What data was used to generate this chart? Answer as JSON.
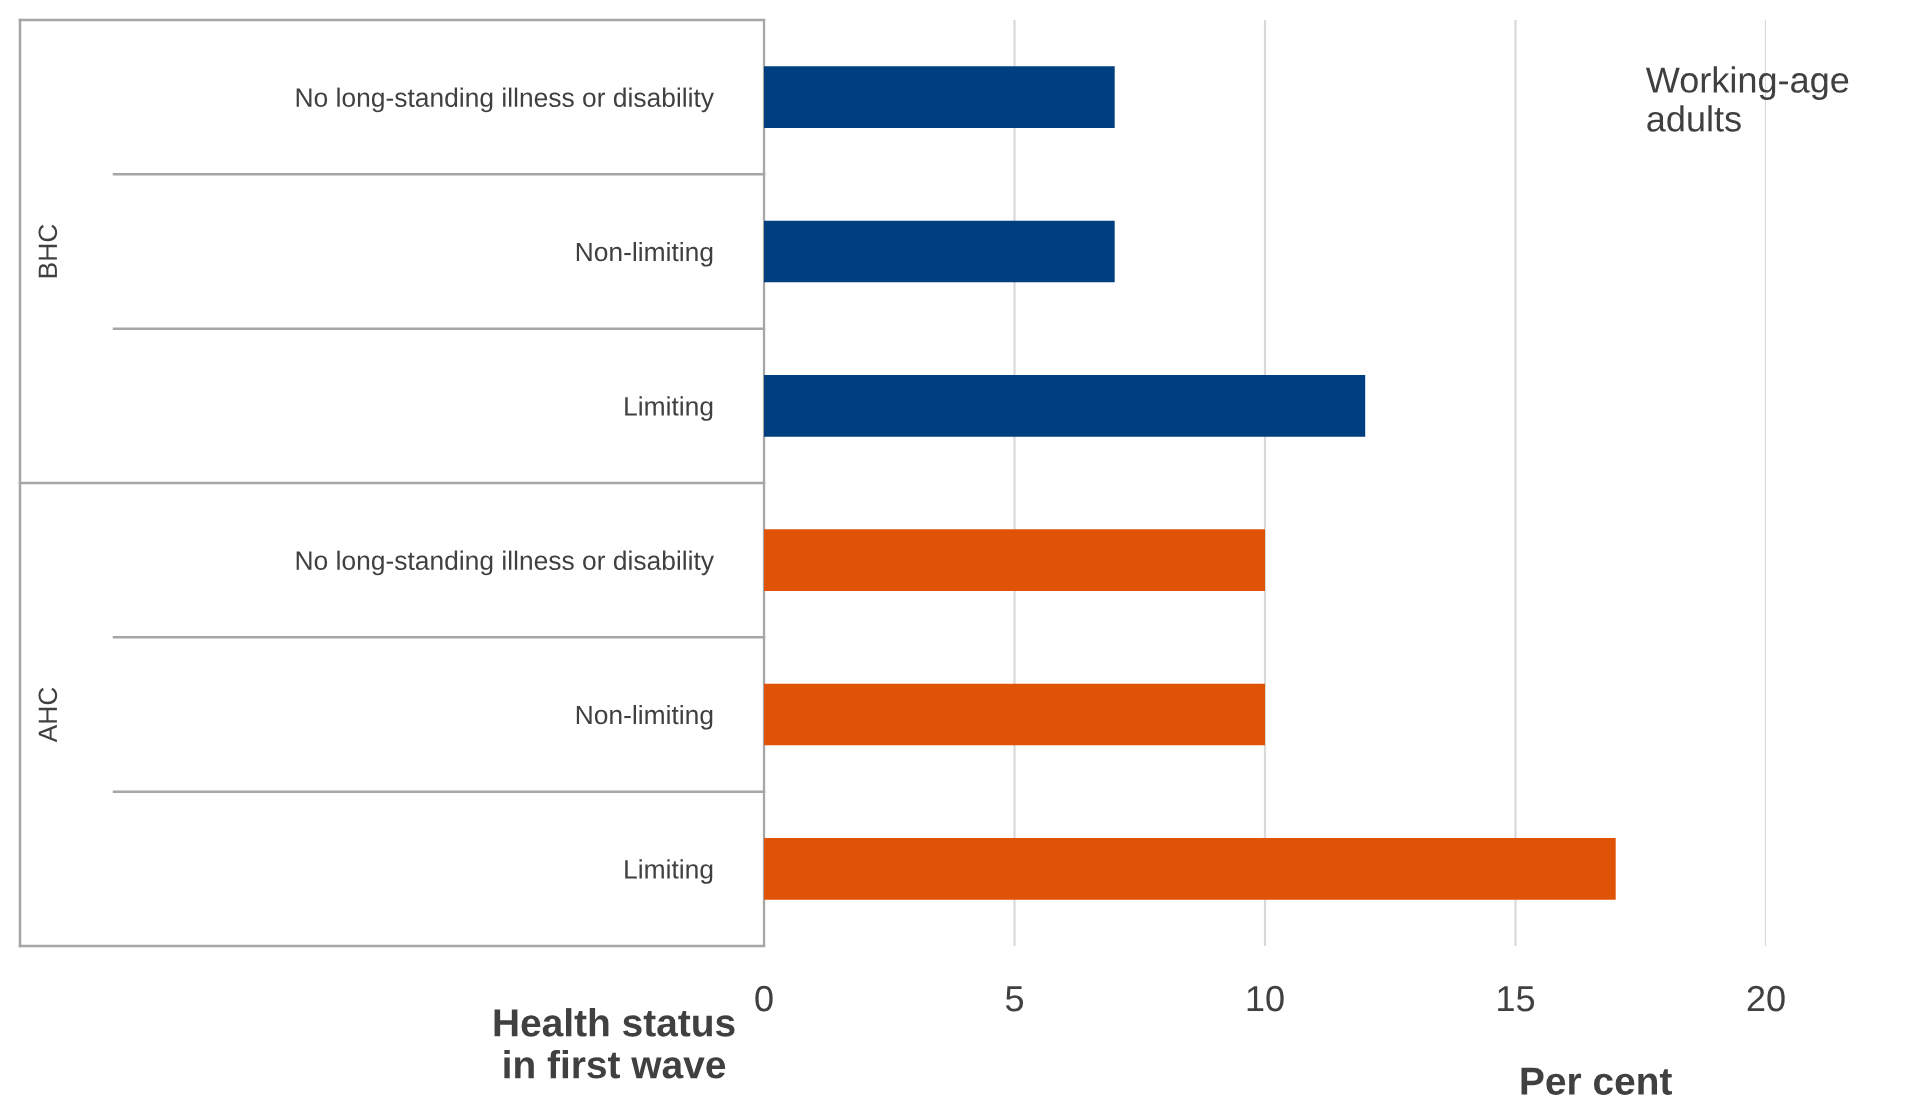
{
  "chart_data": {
    "type": "bar",
    "orientation": "horizontal",
    "title": "Working-age adults",
    "xlabel": "Per cent",
    "ylabel": "Health status in first wave",
    "categories": [
      "No long-standing illness or disability",
      "Non-limiting",
      "Limiting",
      "No long-standing illness or disability",
      "Non-limiting",
      "Limiting"
    ],
    "values": [
      7,
      7,
      12,
      10,
      10,
      17
    ],
    "colors": [
      "#003f7f",
      "#003f7f",
      "#003f7f",
      "#e05206",
      "#e05206",
      "#e05206"
    ],
    "annotations": [
      "BHC",
      "AHC"
    ],
    "xlim": [
      0,
      20
    ],
    "xticks": [
      0,
      5,
      10,
      15,
      20
    ],
    "grid": "x"
  }
}
